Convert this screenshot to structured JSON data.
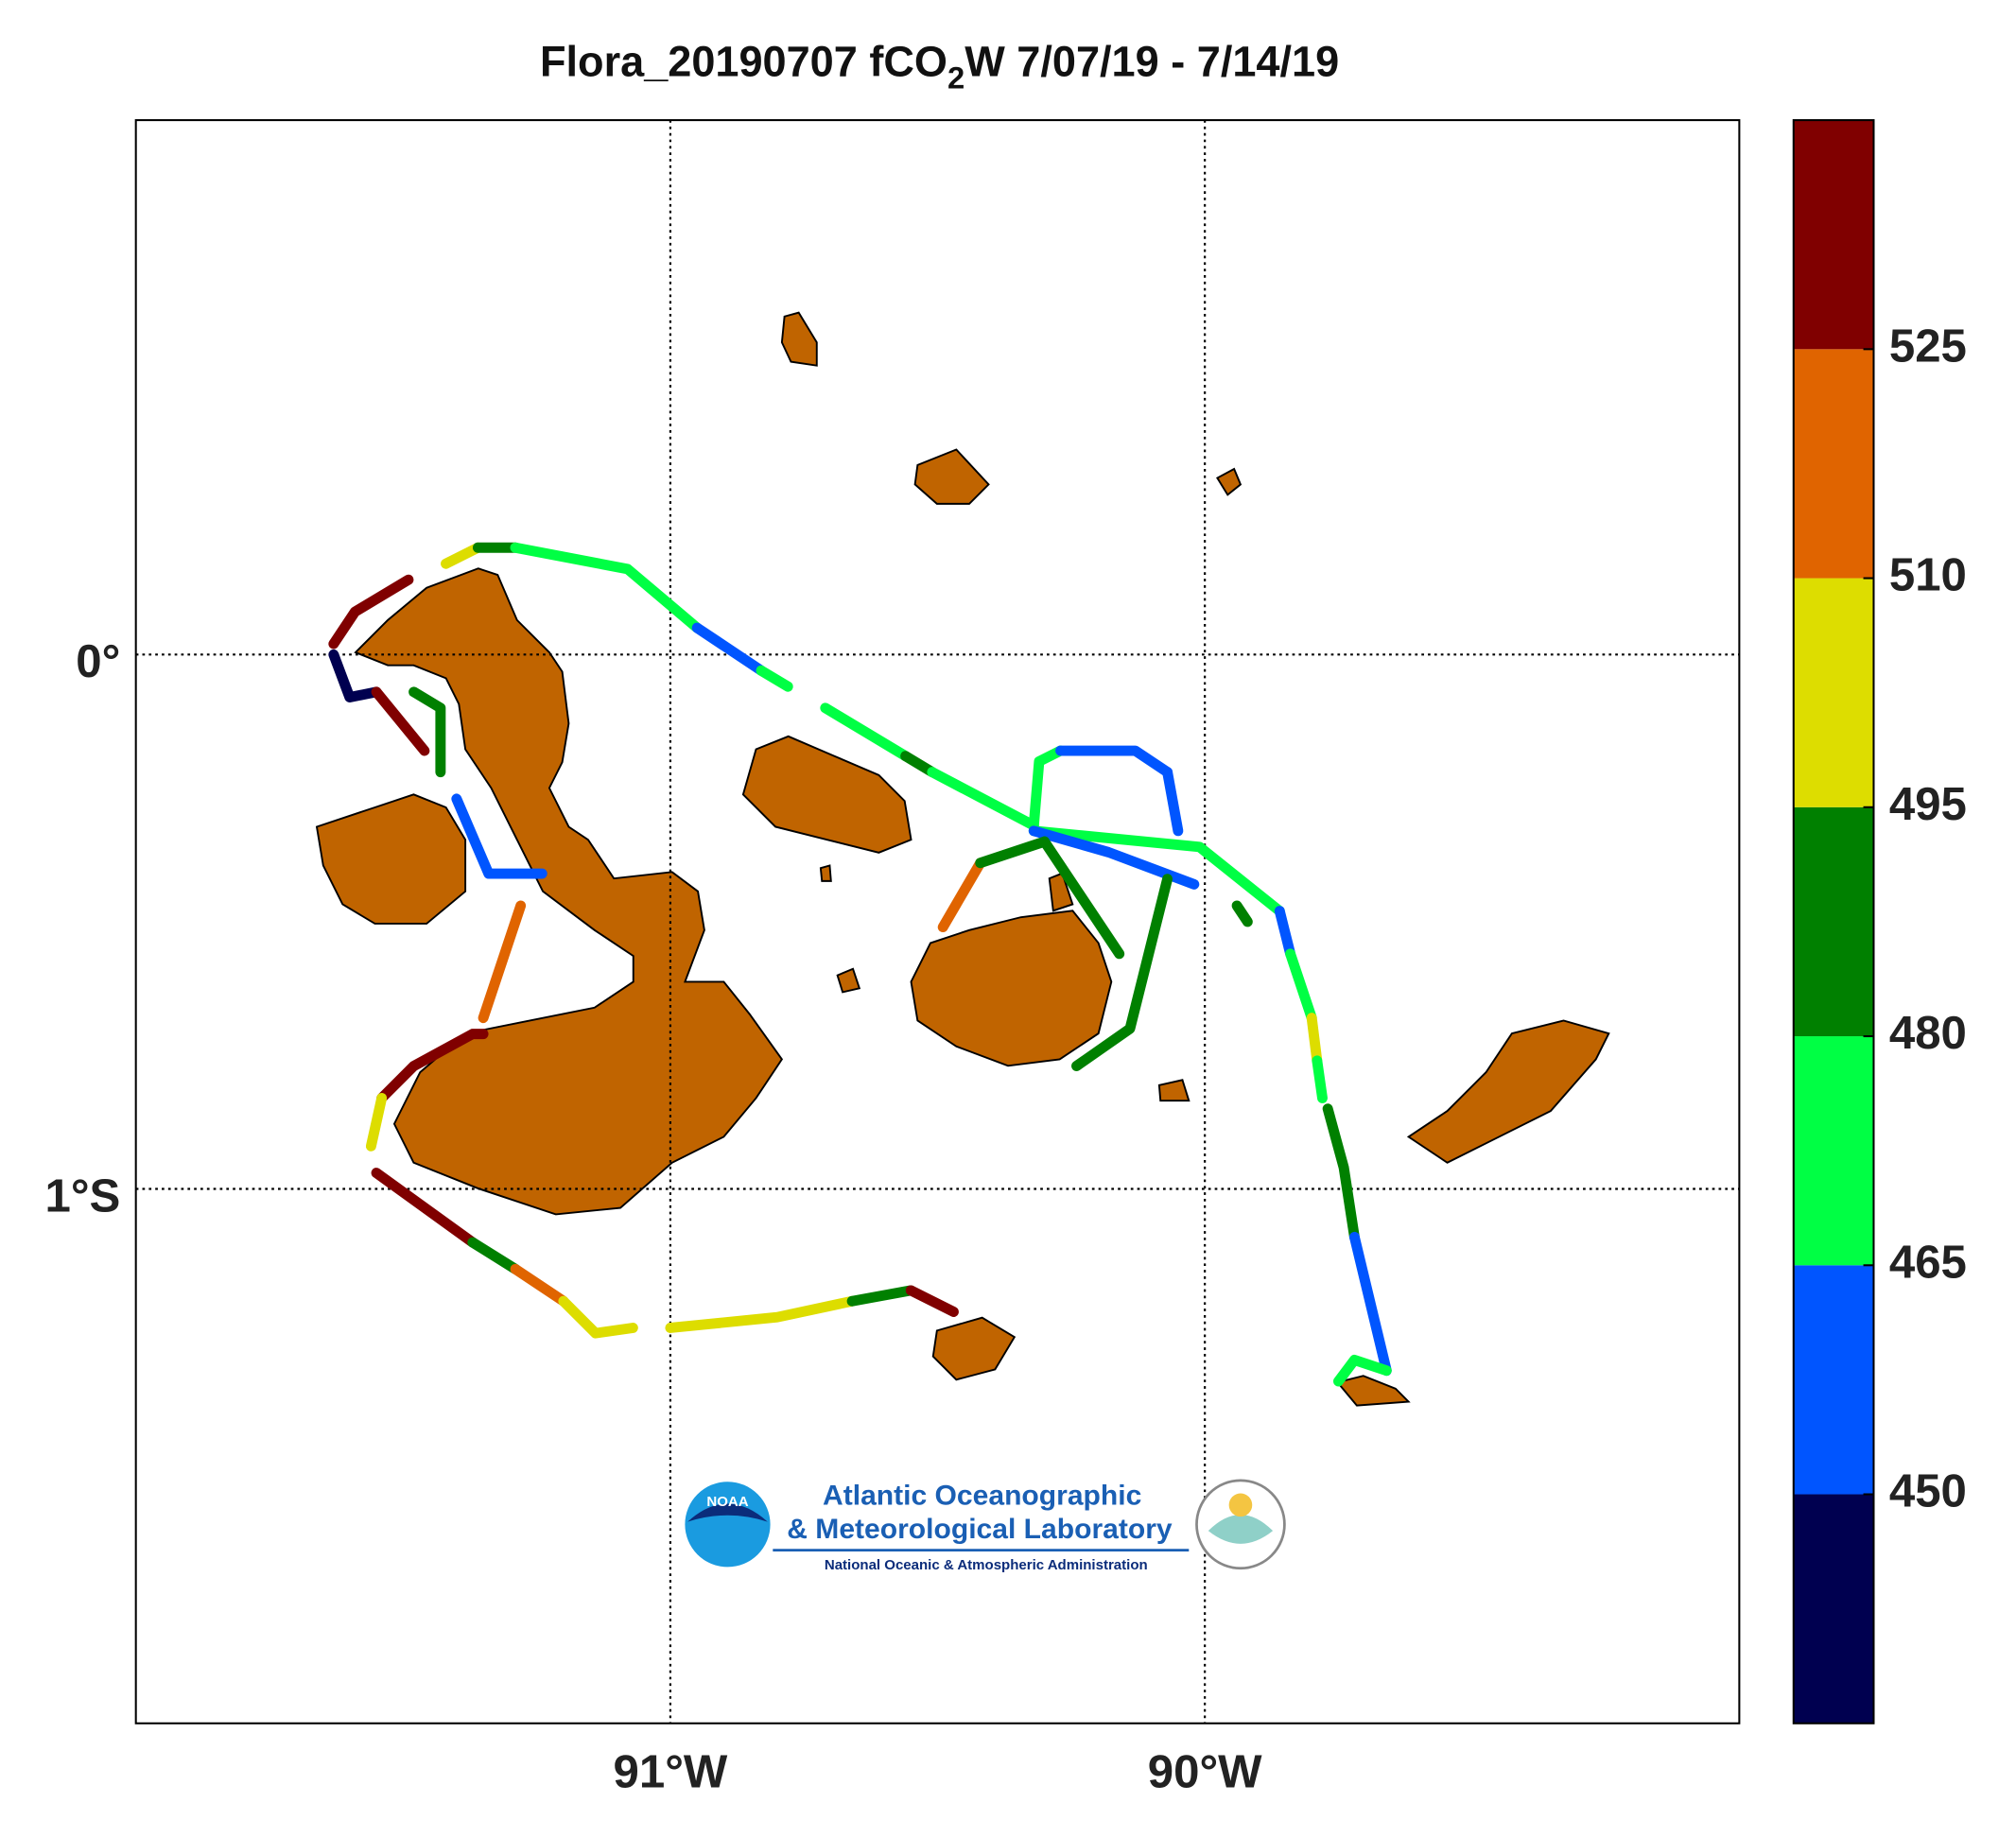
{
  "chart_data": {
    "type": "map",
    "title": {
      "before": "Flora_20190707 fCO",
      "subscript": "2",
      "after": "W 7/07/19 - 7/14/19"
    },
    "xlim": [
      -92,
      -89
    ],
    "ylim": [
      -2,
      1
    ],
    "xticks": [
      {
        "value": -91,
        "label": "91°W"
      },
      {
        "value": -90,
        "label": "90°W"
      }
    ],
    "yticks": [
      {
        "value": 0,
        "label": "0°"
      },
      {
        "value": -1,
        "label": "1°S"
      }
    ],
    "grid": true,
    "colorbar": {
      "clim": [
        435,
        540
      ],
      "ticks": [
        450,
        465,
        480,
        495,
        510,
        525
      ],
      "colors": [
        "#000050",
        "#0055ff",
        "#00ff44",
        "#008000",
        "#dddd00",
        "#e06400",
        "#800000"
      ]
    },
    "track": [
      {
        "lon": [
          -91.42,
          -91.36
        ],
        "lat": [
          0.17,
          0.2
        ],
        "fco2": 500
      },
      {
        "lon": [
          -91.36,
          -91.29
        ],
        "lat": [
          0.2,
          0.2
        ],
        "fco2": 485
      },
      {
        "lon": [
          -91.29,
          -91.08,
          -90.95
        ],
        "lat": [
          0.2,
          0.16,
          0.05
        ],
        "fco2": 470
      },
      {
        "lon": [
          -90.95,
          -90.83
        ],
        "lat": [
          0.05,
          -0.03
        ],
        "fco2": 455
      },
      {
        "lon": [
          -90.83,
          -90.78
        ],
        "lat": [
          -0.03,
          -0.06
        ],
        "fco2": 470
      },
      {
        "lon": [
          -90.71,
          -90.56
        ],
        "lat": [
          -0.1,
          -0.19
        ],
        "fco2": 470
      },
      {
        "lon": [
          -90.56,
          -90.51
        ],
        "lat": [
          -0.19,
          -0.22
        ],
        "fco2": 485
      },
      {
        "lon": [
          -90.51,
          -90.32
        ],
        "lat": [
          -0.22,
          -0.32
        ],
        "fco2": 470
      },
      {
        "lon": [
          -90.32,
          -90.31,
          -90.27
        ],
        "lat": [
          -0.32,
          -0.2,
          -0.18
        ],
        "fco2": 470
      },
      {
        "lon": [
          -90.27,
          -90.13,
          -90.07
        ],
        "lat": [
          -0.18,
          -0.18,
          -0.22
        ],
        "fco2": 455
      },
      {
        "lon": [
          -90.07,
          -90.05
        ],
        "lat": [
          -0.22,
          -0.33
        ],
        "fco2": 455
      },
      {
        "lon": [
          -90.32,
          -90.01,
          -89.86
        ],
        "lat": [
          -0.33,
          -0.36,
          -0.48
        ],
        "fco2": 470
      },
      {
        "lon": [
          -89.86,
          -89.84
        ],
        "lat": [
          -0.48,
          -0.56
        ],
        "fco2": 455
      },
      {
        "lon": [
          -89.84,
          -89.8
        ],
        "lat": [
          -0.56,
          -0.68
        ],
        "fco2": 470
      },
      {
        "lon": [
          -89.8,
          -89.79
        ],
        "lat": [
          -0.68,
          -0.76
        ],
        "fco2": 500
      },
      {
        "lon": [
          -89.79,
          -89.78
        ],
        "lat": [
          -0.76,
          -0.83
        ],
        "fco2": 470
      },
      {
        "lon": [
          -89.77,
          -89.74,
          -89.72
        ],
        "lat": [
          -0.85,
          -0.96,
          -1.09
        ],
        "fco2": 485
      },
      {
        "lon": [
          -89.72,
          -89.66
        ],
        "lat": [
          -1.09,
          -1.34
        ],
        "fco2": 455
      },
      {
        "lon": [
          -89.66,
          -89.72,
          -89.75
        ],
        "lat": [
          -1.34,
          -1.32,
          -1.36
        ],
        "fco2": 470
      },
      {
        "lon": [
          -90.32,
          -90.18,
          -90.02
        ],
        "lat": [
          -0.33,
          -0.37,
          -0.43
        ],
        "fco2": 455
      },
      {
        "lon": [
          -89.94,
          -89.92
        ],
        "lat": [
          -0.47,
          -0.5
        ],
        "fco2": 485
      },
      {
        "lon": [
          -90.3,
          -90.16
        ],
        "lat": [
          -0.35,
          -0.56
        ],
        "fco2": 485
      },
      {
        "lon": [
          -90.07,
          -90.14,
          -90.24
        ],
        "lat": [
          -0.42,
          -0.7,
          -0.77
        ],
        "fco2": 485
      },
      {
        "lon": [
          -90.49,
          -90.42
        ],
        "lat": [
          -0.51,
          -0.39
        ],
        "fco2": 515
      },
      {
        "lon": [
          -90.42,
          -90.3
        ],
        "lat": [
          -0.39,
          -0.35
        ],
        "fco2": 485
      },
      {
        "lon": [
          -91.49,
          -91.59,
          -91.63
        ],
        "lat": [
          0.14,
          0.08,
          0.02
        ],
        "fco2": 530
      },
      {
        "lon": [
          -91.63,
          -91.6,
          -91.55
        ],
        "lat": [
          0.0,
          -0.08,
          -0.07
        ],
        "fco2": 440
      },
      {
        "lon": [
          -91.55,
          -91.46
        ],
        "lat": [
          -0.07,
          -0.18
        ],
        "fco2": 530
      },
      {
        "lon": [
          -91.48,
          -91.43,
          -91.43
        ],
        "lat": [
          -0.07,
          -0.1,
          -0.22
        ],
        "fco2": 485
      },
      {
        "lon": [
          -91.4,
          -91.34,
          -91.24
        ],
        "lat": [
          -0.27,
          -0.41,
          -0.41
        ],
        "fco2": 455
      },
      {
        "lon": [
          -91.28,
          -91.35
        ],
        "lat": [
          -0.47,
          -0.68
        ],
        "fco2": 515
      },
      {
        "lon": [
          -91.35,
          -91.37,
          -91.48,
          -91.54
        ],
        "lat": [
          -0.71,
          -0.71,
          -0.77,
          -0.83
        ],
        "fco2": 530
      },
      {
        "lon": [
          -91.54,
          -91.56
        ],
        "lat": [
          -0.83,
          -0.92
        ],
        "fco2": 500
      },
      {
        "lon": [
          -91.55,
          -91.37
        ],
        "lat": [
          -0.97,
          -1.1
        ],
        "fco2": 530
      },
      {
        "lon": [
          -91.37,
          -91.29
        ],
        "lat": [
          -1.1,
          -1.15
        ],
        "fco2": 485
      },
      {
        "lon": [
          -91.29,
          -91.2
        ],
        "lat": [
          -1.15,
          -1.21
        ],
        "fco2": 515
      },
      {
        "lon": [
          -91.2,
          -91.14,
          -91.07
        ],
        "lat": [
          -1.21,
          -1.27,
          -1.26
        ],
        "fco2": 500
      },
      {
        "lon": [
          -91.0,
          -90.8,
          -90.66
        ],
        "lat": [
          -1.26,
          -1.24,
          -1.21
        ],
        "fco2": 500
      },
      {
        "lon": [
          -90.66,
          -90.55
        ],
        "lat": [
          -1.21,
          -1.19
        ],
        "fco2": 485
      },
      {
        "lon": [
          -90.55,
          -90.47
        ],
        "lat": [
          -1.19,
          -1.23
        ],
        "fco2": 530
      }
    ],
    "logo": {
      "badge": "NOAA",
      "line1": "Atlantic Oceanographic",
      "line2": "& Meteorological Laboratory",
      "line3": "National Oceanic & Atmospheric Administration"
    }
  }
}
